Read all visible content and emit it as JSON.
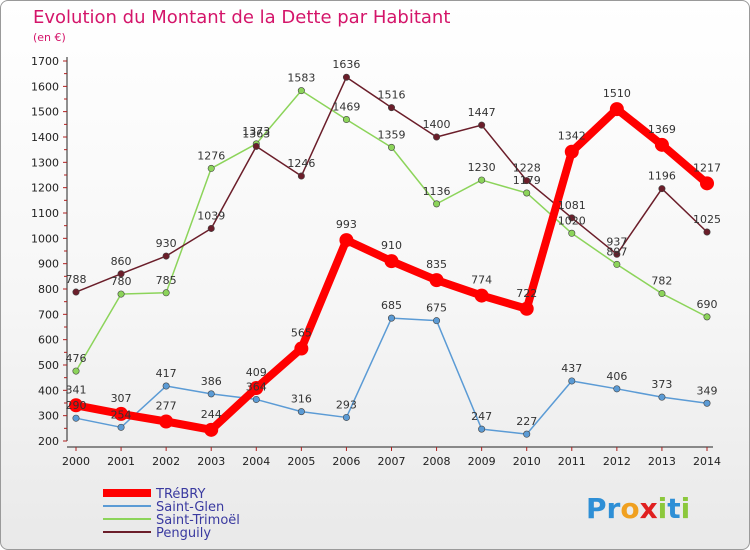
{
  "chart_data": {
    "type": "line",
    "title": "Evolution du Montant de la Dette par Habitant",
    "subtitle": "(en €)",
    "xlabel": "",
    "ylabel": "",
    "categories": [
      "2000",
      "2001",
      "2002",
      "2003",
      "2004",
      "2005",
      "2006",
      "2007",
      "2008",
      "2009",
      "2010",
      "2011",
      "2012",
      "2013",
      "2014"
    ],
    "ylim": [
      200,
      1700
    ],
    "yticks": [
      200,
      300,
      400,
      500,
      600,
      700,
      800,
      900,
      1000,
      1100,
      1200,
      1300,
      1400,
      1500,
      1600,
      1700
    ],
    "grid": false,
    "legend_position": "bottom-left",
    "series": [
      {
        "name": "TRéBRY",
        "color": "#ff0000",
        "emphasis": true,
        "values": [
          341,
          307,
          277,
          244,
          409,
          565,
          993,
          910,
          835,
          774,
          722,
          1342,
          1510,
          1369,
          1217
        ]
      },
      {
        "name": "Saint-Glen",
        "color": "#5b9bd5",
        "values": [
          290,
          254,
          417,
          386,
          364,
          316,
          293,
          685,
          675,
          247,
          227,
          437,
          406,
          373,
          349
        ]
      },
      {
        "name": "Saint-Trimoël",
        "color": "#8cd45a",
        "values": [
          476,
          780,
          785,
          1276,
          1373,
          1583,
          1469,
          1359,
          1136,
          1230,
          1179,
          1020,
          897,
          782,
          690
        ]
      },
      {
        "name": "Penguily",
        "color": "#6b1e2a",
        "values": [
          788,
          860,
          930,
          1039,
          1363,
          1246,
          1636,
          1516,
          1400,
          1447,
          1228,
          1081,
          937,
          1196,
          1025
        ]
      }
    ]
  },
  "branding": {
    "logo_text": "Proxiti",
    "logo_colors": [
      "#2e8fd6",
      "#2e8fd6",
      "#f0a020",
      "#e02020",
      "#8cc83c",
      "#2e8fd6",
      "#8cc83c"
    ]
  }
}
